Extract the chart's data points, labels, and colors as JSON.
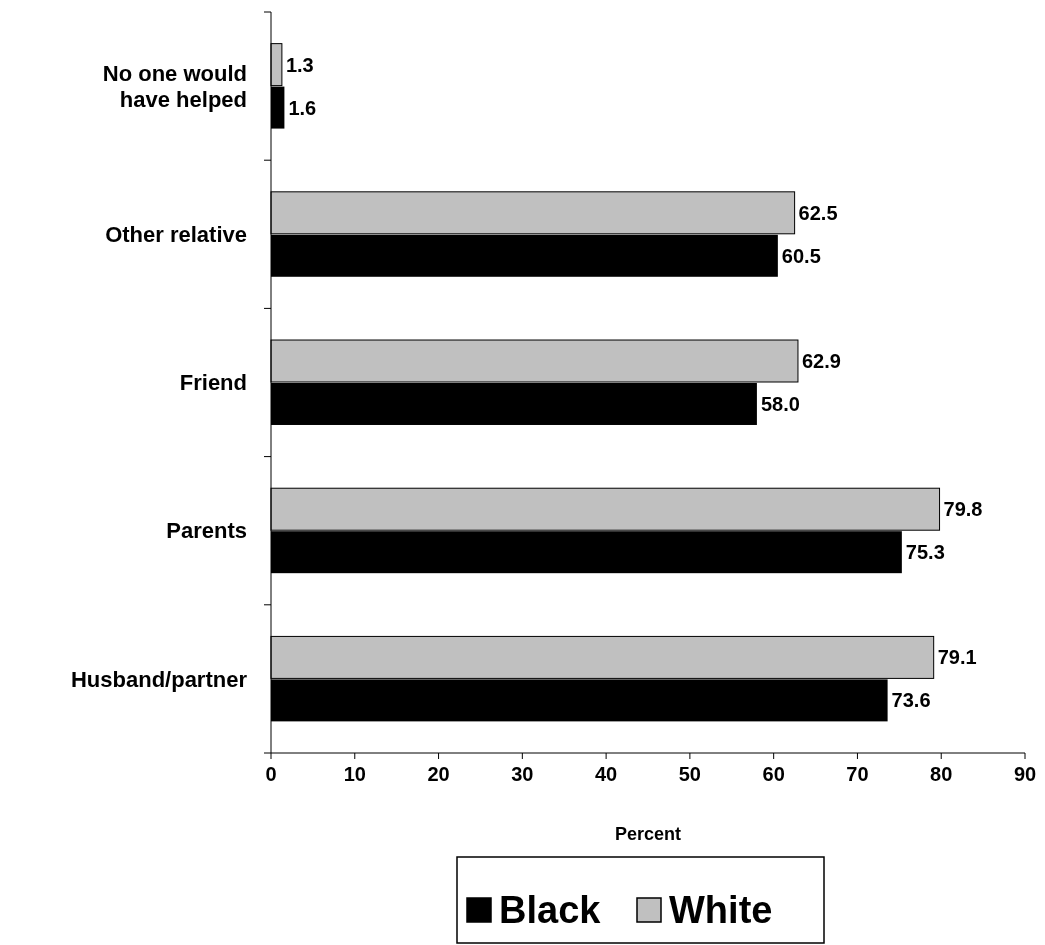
{
  "chart_data": {
    "type": "bar",
    "orientation": "horizontal",
    "xlabel": "Percent",
    "categories": [
      "No one would have helped",
      "Other relative",
      "Friend",
      "Parents",
      "Husband/partner"
    ],
    "series": [
      {
        "name": "White",
        "color": "#c0c0c0",
        "values": [
          1.3,
          62.5,
          62.9,
          79.8,
          79.1
        ],
        "value_labels": [
          "1.3",
          "62.5",
          "62.9",
          "79.8",
          "79.1"
        ]
      },
      {
        "name": "Black",
        "color": "#000000",
        "values": [
          1.6,
          60.5,
          58.0,
          75.3,
          73.6
        ],
        "value_labels": [
          "1.6",
          "60.5",
          "58.0",
          "75.3",
          "73.6"
        ]
      }
    ],
    "xlim": [
      0,
      90
    ],
    "xticks": [
      0,
      10,
      20,
      30,
      40,
      50,
      60,
      70,
      80,
      90
    ],
    "grid": false,
    "legend": "bottom"
  }
}
